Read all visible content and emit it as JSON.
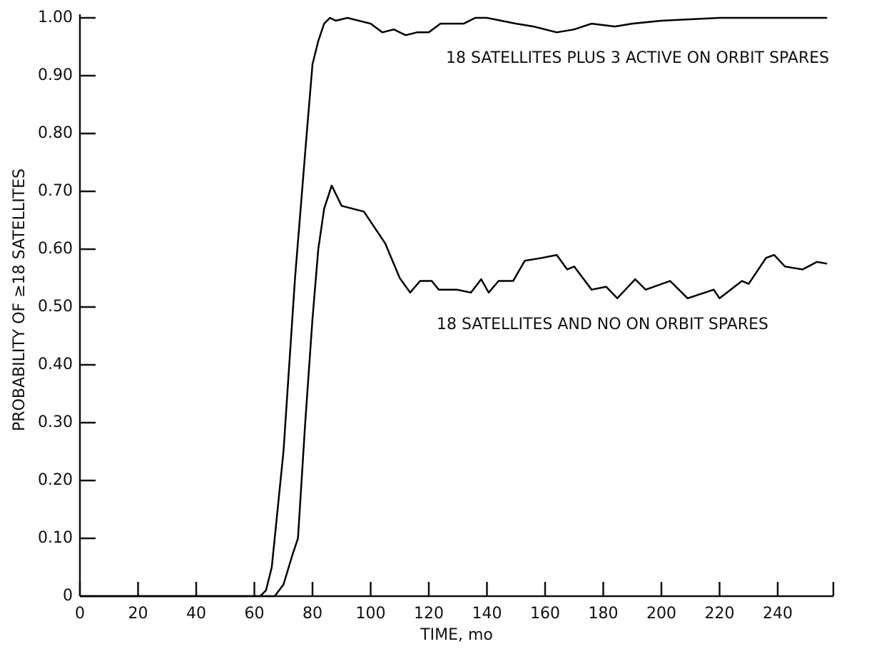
{
  "chart_data": {
    "type": "line",
    "x_label": "TIME, mo",
    "y_label": "PROBABILITY OF ≥18 SATELLITES",
    "xlim": [
      0,
      259
    ],
    "xticks": [
      0,
      20,
      40,
      60,
      80,
      100,
      120,
      140,
      160,
      180,
      200,
      220,
      240
    ],
    "ylim": [
      0,
      1
    ],
    "yticks": [
      0,
      {
        "value": 0.1,
        "label": "0.10"
      },
      {
        "value": 0.2,
        "label": "0.20"
      },
      {
        "value": 0.3,
        "label": "0.30"
      },
      {
        "value": 0.4,
        "label": "0.40"
      },
      {
        "value": 0.5,
        "label": "0.50"
      },
      {
        "value": 0.6,
        "label": "0.60"
      },
      {
        "value": 0.7,
        "label": "0.70"
      },
      {
        "value": 0.8,
        "label": "0.80"
      },
      {
        "value": 0.9,
        "label": "0.90"
      },
      {
        "value": 1,
        "label": "1.00"
      }
    ],
    "grid": false,
    "series": [
      {
        "name": "18 SATELLITES PLUS 3 ACTIVE ON ORBIT SPARES",
        "color": "#000000",
        "x": [
          0,
          62,
          64,
          66,
          70,
          74,
          78,
          80,
          82,
          84,
          86,
          88,
          92,
          100,
          104,
          108,
          112,
          116,
          120,
          124,
          128,
          132,
          136,
          140,
          150,
          156,
          160,
          164,
          170,
          176,
          184,
          190,
          200,
          220,
          240,
          250,
          257
        ],
        "values": [
          0,
          0,
          0.01,
          0.05,
          0.25,
          0.55,
          0.8,
          0.92,
          0.96,
          0.99,
          1.0,
          0.995,
          1.0,
          0.99,
          0.975,
          0.98,
          0.97,
          0.975,
          0.975,
          0.99,
          0.99,
          0.99,
          1.0,
          1.0,
          0.99,
          0.985,
          0.98,
          0.975,
          0.98,
          0.99,
          0.985,
          0.99,
          0.995,
          1.0,
          1.0,
          1.0,
          1.0
        ]
      },
      {
        "name": "18 SATELLITES AND NO ON ORBIT SPARES",
        "color": "#000000",
        "x": [
          0,
          67,
          70,
          73,
          75,
          77.5,
          80,
          82,
          84,
          86.6,
          90,
          97.7,
          105,
          110,
          113.6,
          117,
          121,
          123.4,
          129.6,
          134.5,
          138,
          140.6,
          144,
          149,
          153,
          159,
          164,
          167.6,
          170,
          176,
          181,
          184.8,
          191,
          194.6,
          203,
          209,
          218,
          220,
          227.7,
          230,
          236,
          238.8,
          242.5,
          248.6,
          253.5,
          257
        ],
        "values": [
          0,
          0,
          0.02,
          0.07,
          0.1,
          0.3,
          0.48,
          0.6,
          0.67,
          0.71,
          0.675,
          0.665,
          0.61,
          0.55,
          0.525,
          0.545,
          0.545,
          0.53,
          0.53,
          0.525,
          0.548,
          0.525,
          0.545,
          0.545,
          0.58,
          0.585,
          0.59,
          0.565,
          0.57,
          0.53,
          0.535,
          0.515,
          0.548,
          0.53,
          0.545,
          0.515,
          0.53,
          0.515,
          0.545,
          0.54,
          0.585,
          0.59,
          0.57,
          0.565,
          0.578,
          0.575
        ]
      }
    ]
  }
}
